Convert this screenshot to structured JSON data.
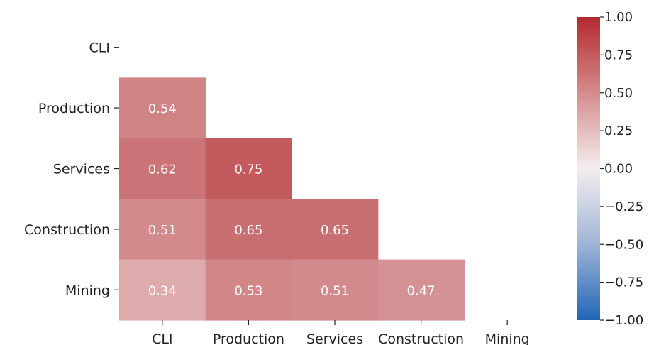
{
  "chart_data": {
    "type": "heatmap",
    "title": "",
    "xlabel": "",
    "ylabel": "",
    "x_categories": [
      "CLI",
      "Production",
      "Services",
      "Construction",
      "Mining"
    ],
    "y_categories": [
      "CLI",
      "Production",
      "Services",
      "Construction",
      "Mining"
    ],
    "mask": "upper-triangle-including-diagonal",
    "values": [
      [
        null,
        null,
        null,
        null,
        null
      ],
      [
        0.54,
        null,
        null,
        null,
        null
      ],
      [
        0.62,
        0.75,
        null,
        null,
        null
      ],
      [
        0.51,
        0.65,
        0.65,
        null,
        null
      ],
      [
        0.34,
        0.53,
        0.51,
        0.47,
        null
      ]
    ],
    "value_labels": [
      [
        "",
        "",
        "",
        "",
        ""
      ],
      [
        "0.54",
        "",
        "",
        "",
        ""
      ],
      [
        "0.62",
        "0.75",
        "",
        "",
        ""
      ],
      [
        "0.51",
        "0.65",
        "0.65",
        "",
        ""
      ],
      [
        "0.34",
        "0.53",
        "0.51",
        "0.47",
        ""
      ]
    ],
    "colorbar": {
      "range": [
        -1.0,
        1.0
      ],
      "ticks": [
        1.0,
        0.75,
        0.5,
        0.25,
        0.0,
        -0.25,
        -0.5,
        -0.75,
        -1.0
      ],
      "tick_labels": [
        "1.00",
        "0.75",
        "0.50",
        "0.25",
        "0.00",
        "−0.25",
        "−0.50",
        "−0.75",
        "−1.00"
      ],
      "colormap": "vlag",
      "color_stops": [
        "#2166b5",
        "#f4eeee",
        "#b22a2e"
      ],
      "placement": "right"
    },
    "grid": false,
    "legend": "colorbar-right"
  }
}
